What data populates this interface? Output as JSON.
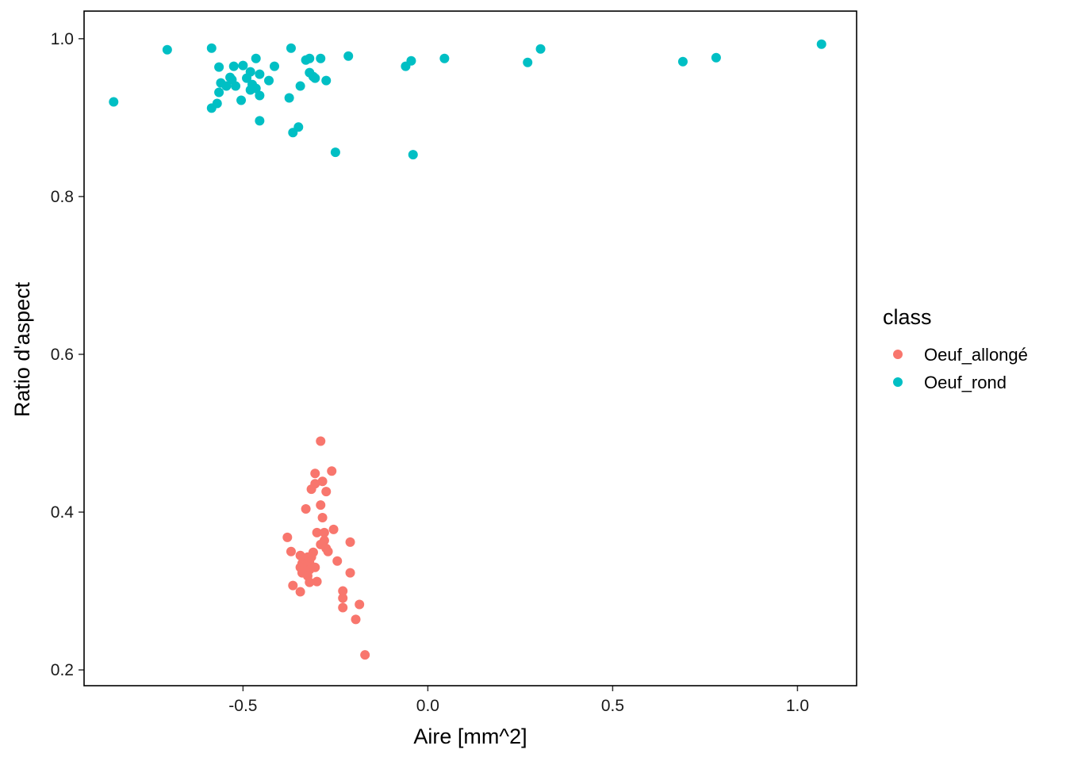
{
  "chart_data": {
    "type": "scatter",
    "xlabel": "Aire  [mm^2]",
    "ylabel": "Ratio d'aspect",
    "xlim": [
      -0.93,
      1.16
    ],
    "ylim": [
      0.18,
      1.035
    ],
    "x_ticks": [
      -0.5,
      0.0,
      0.5,
      1.0
    ],
    "x_tick_labels": [
      "-0.5",
      "0.0",
      "0.5",
      "1.0"
    ],
    "y_ticks": [
      0.2,
      0.4,
      0.6,
      0.8,
      1.0
    ],
    "y_tick_labels": [
      "0.2",
      "0.4",
      "0.6",
      "0.8",
      "1.0"
    ],
    "grid": false,
    "legend": {
      "title": "class",
      "position": "right"
    },
    "series": [
      {
        "name": "Oeuf_allongé",
        "color": "#F8766D",
        "points": [
          [
            -0.29,
            0.49
          ],
          [
            -0.26,
            0.452
          ],
          [
            -0.305,
            0.449
          ],
          [
            -0.285,
            0.439
          ],
          [
            -0.305,
            0.436
          ],
          [
            -0.315,
            0.429
          ],
          [
            -0.275,
            0.426
          ],
          [
            -0.29,
            0.409
          ],
          [
            -0.33,
            0.404
          ],
          [
            -0.285,
            0.393
          ],
          [
            -0.255,
            0.378
          ],
          [
            -0.3,
            0.374
          ],
          [
            -0.28,
            0.374
          ],
          [
            -0.38,
            0.368
          ],
          [
            -0.28,
            0.364
          ],
          [
            -0.21,
            0.362
          ],
          [
            -0.29,
            0.359
          ],
          [
            -0.275,
            0.354
          ],
          [
            -0.27,
            0.35
          ],
          [
            -0.37,
            0.35
          ],
          [
            -0.31,
            0.349
          ],
          [
            -0.345,
            0.345
          ],
          [
            -0.325,
            0.343
          ],
          [
            -0.315,
            0.343
          ],
          [
            -0.335,
            0.339
          ],
          [
            -0.32,
            0.336
          ],
          [
            -0.245,
            0.338
          ],
          [
            -0.34,
            0.335
          ],
          [
            -0.33,
            0.333
          ],
          [
            -0.325,
            0.331
          ],
          [
            -0.345,
            0.33
          ],
          [
            -0.305,
            0.33
          ],
          [
            -0.335,
            0.328
          ],
          [
            -0.32,
            0.327
          ],
          [
            -0.33,
            0.325
          ],
          [
            -0.34,
            0.323
          ],
          [
            -0.21,
            0.323
          ],
          [
            -0.325,
            0.319
          ],
          [
            -0.3,
            0.312
          ],
          [
            -0.32,
            0.311
          ],
          [
            -0.365,
            0.307
          ],
          [
            -0.23,
            0.3
          ],
          [
            -0.345,
            0.299
          ],
          [
            -0.23,
            0.291
          ],
          [
            -0.185,
            0.283
          ],
          [
            -0.23,
            0.279
          ],
          [
            -0.195,
            0.264
          ],
          [
            -0.17,
            0.219
          ]
        ]
      },
      {
        "name": "Oeuf_rond",
        "color": "#00BFC4",
        "points": [
          [
            1.065,
            0.993
          ],
          [
            -0.585,
            0.988
          ],
          [
            -0.37,
            0.988
          ],
          [
            0.305,
            0.987
          ],
          [
            -0.705,
            0.986
          ],
          [
            -0.215,
            0.978
          ],
          [
            0.78,
            0.976
          ],
          [
            -0.29,
            0.975
          ],
          [
            -0.32,
            0.975
          ],
          [
            0.045,
            0.975
          ],
          [
            -0.465,
            0.975
          ],
          [
            -0.33,
            0.973
          ],
          [
            -0.045,
            0.972
          ],
          [
            0.69,
            0.971
          ],
          [
            0.27,
            0.97
          ],
          [
            -0.5,
            0.966
          ],
          [
            -0.525,
            0.965
          ],
          [
            -0.415,
            0.965
          ],
          [
            -0.06,
            0.965
          ],
          [
            -0.565,
            0.964
          ],
          [
            -0.48,
            0.958
          ],
          [
            -0.32,
            0.957
          ],
          [
            -0.455,
            0.955
          ],
          [
            -0.31,
            0.952
          ],
          [
            -0.535,
            0.951
          ],
          [
            -0.49,
            0.95
          ],
          [
            -0.305,
            0.95
          ],
          [
            -0.53,
            0.948
          ],
          [
            -0.43,
            0.947
          ],
          [
            -0.275,
            0.947
          ],
          [
            -0.56,
            0.944
          ],
          [
            -0.475,
            0.942
          ],
          [
            -0.545,
            0.94
          ],
          [
            -0.52,
            0.94
          ],
          [
            -0.345,
            0.94
          ],
          [
            -0.465,
            0.937
          ],
          [
            -0.48,
            0.935
          ],
          [
            -0.565,
            0.932
          ],
          [
            -0.455,
            0.928
          ],
          [
            -0.375,
            0.925
          ],
          [
            -0.505,
            0.922
          ],
          [
            -0.85,
            0.92
          ],
          [
            -0.57,
            0.918
          ],
          [
            -0.585,
            0.912
          ],
          [
            -0.455,
            0.896
          ],
          [
            -0.35,
            0.888
          ],
          [
            -0.365,
            0.881
          ],
          [
            -0.25,
            0.856
          ],
          [
            -0.04,
            0.853
          ]
        ]
      }
    ]
  }
}
